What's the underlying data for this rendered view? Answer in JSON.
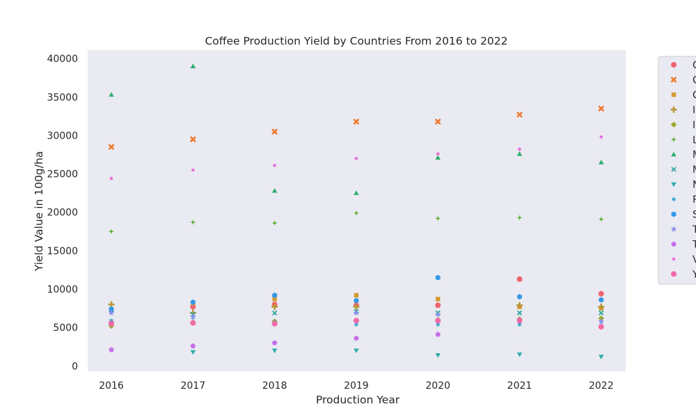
{
  "chart_data": {
    "type": "scatter",
    "title": "Coffee Production Yield by Countries From 2016 to 2022",
    "xlabel": "Production Year",
    "ylabel": "Yield Value in 100g/ha",
    "x": [
      "2016",
      "2017",
      "2018",
      "2019",
      "2020",
      "2021",
      "2022"
    ],
    "yticks": [
      "0",
      "5000",
      "10000",
      "15000",
      "20000",
      "25000",
      "30000",
      "35000",
      "40000"
    ],
    "ylim": [
      -700,
      41100
    ],
    "grid": false,
    "legend_position": "outside-right",
    "background": "#eaeaf2",
    "series": [
      {
        "name": "C",
        "marker": "circle",
        "color": "#f0646e",
        "values": [
          5600,
          7700,
          8000,
          7900,
          7900,
          11300,
          9400
        ]
      },
      {
        "name": "C",
        "marker": "x",
        "color": "#ee7a2e",
        "values": [
          28500,
          29500,
          30500,
          31800,
          31800,
          32700,
          33500
        ]
      },
      {
        "name": "C",
        "marker": "square",
        "color": "#d49a30",
        "values": [
          7300,
          8200,
          8700,
          9200,
          8700,
          7700,
          7500
        ]
      },
      {
        "name": "I",
        "marker": "plus",
        "color": "#b8963a",
        "values": [
          8000,
          6900,
          7700,
          7700,
          null,
          7900,
          7700
        ]
      },
      {
        "name": "I",
        "marker": "diamond",
        "color": "#9ba82e",
        "values": [
          5200,
          5700,
          5800,
          5900,
          6000,
          6100,
          6200
        ]
      },
      {
        "name": "L",
        "marker": "thin-plus",
        "color": "#58b030",
        "values": [
          17500,
          18700,
          18600,
          19900,
          19200,
          19300,
          19100
        ]
      },
      {
        "name": "M",
        "marker": "triangle-up",
        "color": "#2fae6b",
        "values": [
          35300,
          39000,
          22800,
          22500,
          27100,
          27600,
          26500
        ]
      },
      {
        "name": "M",
        "marker": "x-thin",
        "color": "#31a89b",
        "values": [
          7300,
          6700,
          6900,
          7100,
          6900,
          6900,
          6900
        ]
      },
      {
        "name": "N",
        "marker": "triangle-down",
        "color": "#2fafaa",
        "values": [
          null,
          1800,
          2000,
          2000,
          1400,
          1500,
          1200
        ]
      },
      {
        "name": "P",
        "marker": "star6",
        "color": "#33a3cf",
        "values": [
          5900,
          6300,
          5700,
          5400,
          5400,
          5400,
          5700
        ]
      },
      {
        "name": "S",
        "marker": "hexagon",
        "color": "#3399e6",
        "values": [
          7400,
          8300,
          9200,
          8500,
          11500,
          9000,
          8600
        ]
      },
      {
        "name": "T",
        "marker": "star",
        "color": "#8c8fee",
        "values": [
          6900,
          6400,
          5500,
          6900,
          6700,
          6000,
          5800
        ]
      },
      {
        "name": "T",
        "marker": "pentagon",
        "color": "#c56ee8",
        "values": [
          2100,
          2600,
          3000,
          3600,
          4100,
          5900,
          5100
        ]
      },
      {
        "name": "V",
        "marker": "star8",
        "color": "#e666d8",
        "values": [
          24400,
          25500,
          26100,
          27000,
          27600,
          28200,
          29800
        ]
      },
      {
        "name": "Y",
        "marker": "circle",
        "color": "#f06aa8",
        "values": [
          5500,
          5600,
          5500,
          5900,
          5900,
          5900,
          5100
        ]
      }
    ]
  }
}
